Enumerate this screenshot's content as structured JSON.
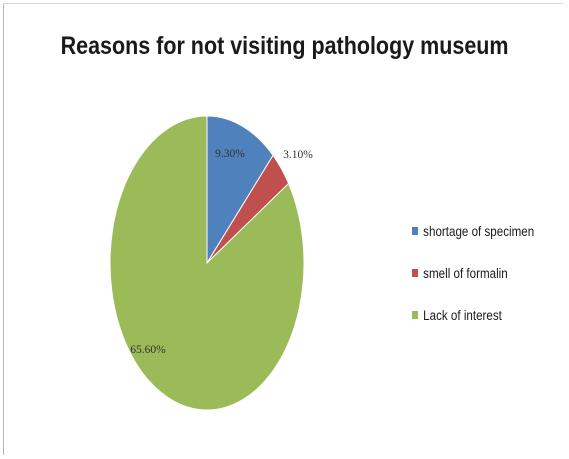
{
  "chart_data": {
    "type": "pie",
    "title": "Reasons for not visiting pathology museum",
    "legend_position": "right",
    "slices": [
      {
        "label": "shortage of specimen",
        "value": 9.3,
        "data_label": "9.30%",
        "color": "#4f81bd"
      },
      {
        "label": "smell of formalin",
        "value": 3.1,
        "data_label": "3.10%",
        "color": "#c0504d"
      },
      {
        "label": "Lack of interest",
        "value": 65.6,
        "data_label": "65.60%",
        "color": "#9bbb59"
      }
    ]
  }
}
